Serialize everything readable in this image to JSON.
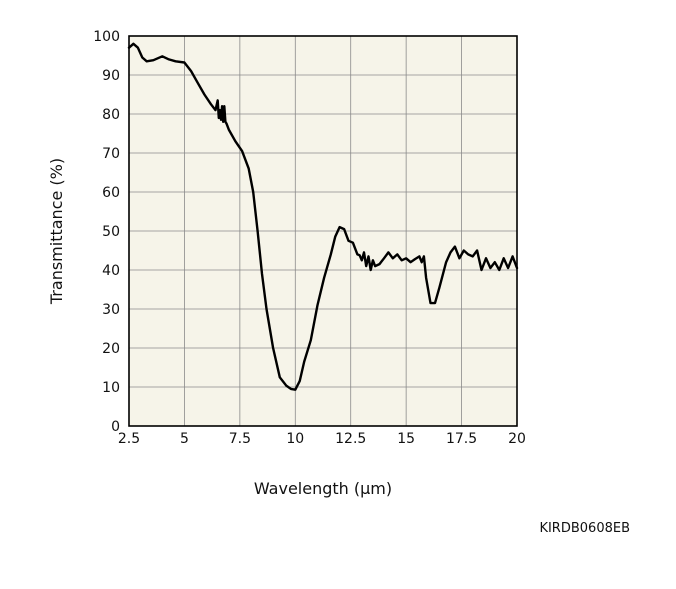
{
  "chart_data": {
    "type": "line",
    "title": "",
    "xlabel": "Wavelength (μm)",
    "ylabel": "Transmittance (%)",
    "xlim": [
      2.5,
      20
    ],
    "ylim": [
      0,
      100
    ],
    "x_ticks": [
      2.5,
      5,
      7.5,
      10,
      12.5,
      15,
      17.5,
      20
    ],
    "x_tick_labels": [
      "2.5",
      "5",
      "7.5",
      "10",
      "12.5",
      "15",
      "17.5",
      "20"
    ],
    "y_ticks": [
      0,
      10,
      20,
      30,
      40,
      50,
      60,
      70,
      80,
      90,
      100
    ],
    "y_tick_labels": [
      "0",
      "10",
      "20",
      "30",
      "40",
      "50",
      "60",
      "70",
      "80",
      "90",
      "100"
    ],
    "grid": true,
    "series": [
      {
        "x": [
          2.5,
          2.7,
          2.9,
          3.1,
          3.3,
          3.6,
          4.0,
          4.3,
          4.6,
          5.0,
          5.3,
          5.6,
          5.9,
          6.2,
          6.4,
          6.5,
          6.55,
          6.6,
          6.65,
          6.7,
          6.75,
          6.8,
          6.85,
          6.9,
          7.0,
          7.3,
          7.6,
          7.9,
          8.1,
          8.3,
          8.5,
          8.7,
          9.0,
          9.3,
          9.6,
          9.8,
          10.0,
          10.2,
          10.4,
          10.7,
          11.0,
          11.3,
          11.6,
          11.8,
          12.0,
          12.2,
          12.4,
          12.6,
          12.8,
          12.9,
          13.0,
          13.1,
          13.2,
          13.3,
          13.4,
          13.5,
          13.6,
          13.8,
          14.0,
          14.2,
          14.4,
          14.6,
          14.8,
          15.0,
          15.2,
          15.4,
          15.6,
          15.7,
          15.8,
          15.9,
          16.1,
          16.3,
          16.5,
          16.8,
          17.0,
          17.2,
          17.4,
          17.6,
          17.8,
          18.0,
          18.2,
          18.4,
          18.6,
          18.8,
          19.0,
          19.2,
          19.4,
          19.6,
          19.8,
          20.0
        ],
        "y": [
          97,
          98,
          97,
          94.5,
          93.5,
          93.8,
          94.8,
          94.0,
          93.5,
          93.2,
          91.0,
          88.0,
          85.0,
          82.5,
          81.0,
          83.5,
          79.0,
          81.0,
          78.5,
          82.0,
          78.0,
          82.0,
          78.0,
          77.5,
          76.0,
          73.0,
          70.5,
          66.0,
          60.0,
          50.0,
          39.0,
          30.0,
          20.0,
          12.5,
          10.3,
          9.5,
          9.3,
          11.5,
          16.5,
          22.0,
          31.0,
          38.0,
          44.0,
          48.5,
          51.0,
          50.5,
          47.5,
          47.0,
          44.0,
          43.8,
          42.5,
          44.5,
          41.0,
          43.5,
          40.0,
          42.5,
          41.0,
          41.5,
          43.0,
          44.5,
          43.0,
          44.0,
          42.5,
          43.0,
          42.0,
          42.8,
          43.5,
          42.0,
          43.5,
          38.0,
          31.5,
          31.5,
          35.5,
          42.0,
          44.5,
          46.0,
          43.0,
          45.0,
          44.0,
          43.5,
          45.0,
          40.0,
          43.0,
          40.5,
          42.0,
          40.0,
          43.0,
          40.5,
          43.5,
          40.5
        ]
      }
    ]
  },
  "figure_code": "KIRDB0608EB"
}
